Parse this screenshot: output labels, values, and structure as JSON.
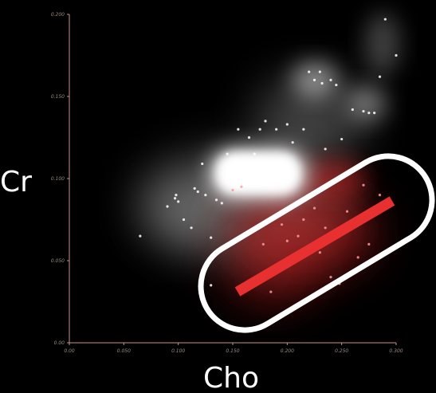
{
  "chart_data": {
    "type": "scatter",
    "title": "",
    "xlabel": "Cho",
    "ylabel": "Cr",
    "xlim": [
      0,
      0.3
    ],
    "ylim": [
      0,
      0.2
    ],
    "x_ticks": [
      "0.00",
      "0.050",
      "0.100",
      "0.150",
      "0.200",
      "0.250",
      "0.300"
    ],
    "y_ticks": [
      "0.00",
      "0.050",
      "0.100",
      "0.150",
      "0.200"
    ],
    "grid": false,
    "legend": "none",
    "colors": {
      "background": "#000000",
      "axis": "#c8958a",
      "tick_text": "#9a8a80",
      "label_text": "#ffffff",
      "density_main": "#ffffff",
      "density_highlight": "#e03030",
      "trend_line": "#e83030",
      "outline": "#ffffff"
    },
    "series": [
      {
        "points": [
          [
            0.065,
            0.065
          ],
          [
            0.09,
            0.083
          ],
          [
            0.1,
            0.086
          ],
          [
            0.098,
            0.09
          ],
          [
            0.115,
            0.094
          ],
          [
            0.118,
            0.092
          ],
          [
            0.125,
            0.09
          ],
          [
            0.13,
            0.064
          ],
          [
            0.112,
            0.07
          ],
          [
            0.105,
            0.075
          ],
          [
            0.097,
            0.088
          ],
          [
            0.135,
            0.087
          ],
          [
            0.14,
            0.085
          ],
          [
            0.15,
            0.093
          ],
          [
            0.158,
            0.095
          ],
          [
            0.17,
            0.115
          ],
          [
            0.175,
            0.13
          ],
          [
            0.19,
            0.13
          ],
          [
            0.2,
            0.133
          ],
          [
            0.18,
            0.135
          ],
          [
            0.22,
            0.165
          ],
          [
            0.23,
            0.165
          ],
          [
            0.225,
            0.16
          ],
          [
            0.232,
            0.158
          ],
          [
            0.24,
            0.16
          ],
          [
            0.245,
            0.157
          ],
          [
            0.285,
            0.162
          ],
          [
            0.26,
            0.142
          ],
          [
            0.27,
            0.141
          ],
          [
            0.275,
            0.14
          ],
          [
            0.28,
            0.14
          ],
          [
            0.29,
            0.197
          ],
          [
            0.3,
            0.175
          ],
          [
            0.205,
            0.122
          ],
          [
            0.215,
            0.13
          ],
          [
            0.235,
            0.118
          ],
          [
            0.25,
            0.124
          ],
          [
            0.155,
            0.13
          ],
          [
            0.165,
            0.125
          ],
          [
            0.145,
            0.115
          ],
          [
            0.122,
            0.109
          ],
          [
            0.21,
            0.065
          ],
          [
            0.215,
            0.075
          ],
          [
            0.2,
            0.062
          ],
          [
            0.225,
            0.082
          ],
          [
            0.235,
            0.07
          ],
          [
            0.27,
            0.096
          ],
          [
            0.285,
            0.09
          ],
          [
            0.24,
            0.04
          ],
          [
            0.248,
            0.036
          ],
          [
            0.185,
            0.031
          ],
          [
            0.178,
            0.06
          ],
          [
            0.195,
            0.072
          ],
          [
            0.205,
            0.05
          ],
          [
            0.23,
            0.055
          ],
          [
            0.255,
            0.08
          ],
          [
            0.265,
            0.052
          ],
          [
            0.13,
            0.035
          ],
          [
            0.275,
            0.06
          ]
        ]
      }
    ]
  }
}
